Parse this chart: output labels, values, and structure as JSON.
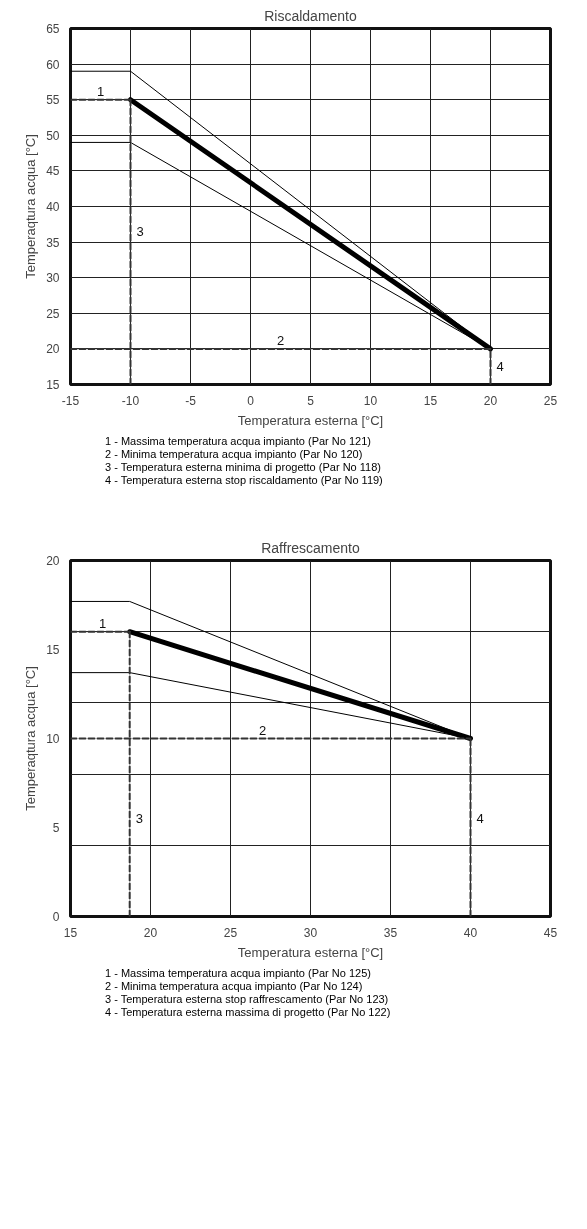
{
  "chart_data": [
    {
      "type": "line",
      "title": "Riscaldamento",
      "xlabel": "Temperatura esterna [°C]",
      "ylabel": "Temperaqtura acqua [°C]",
      "xlim": [
        -15,
        25
      ],
      "xticks": [
        -15,
        -10,
        -5,
        0,
        5,
        10,
        15,
        20,
        25
      ],
      "ylim": [
        15,
        65
      ],
      "yticks": [
        15,
        20,
        25,
        30,
        35,
        40,
        45,
        50,
        55,
        60,
        65
      ],
      "grid": true,
      "marker": "none",
      "series": [
        {
          "color": "#000000",
          "x": [
            -10,
            20
          ],
          "values": [
            55,
            20
          ]
        },
        {
          "color": "#000000",
          "x": [
            -15,
            -10,
            20
          ],
          "values": [
            59,
            59,
            20
          ]
        },
        {
          "color": "#000000",
          "x": [
            -15,
            -10,
            20
          ],
          "values": [
            49,
            49,
            20
          ]
        },
        {
          "color": "#333333",
          "line_style": "dashed",
          "x": [
            -15,
            -10
          ],
          "values": [
            55,
            55
          ]
        },
        {
          "color": "#333333",
          "line_style": "dashed",
          "x": [
            -10,
            -10
          ],
          "values": [
            15,
            55
          ]
        },
        {
          "color": "#333333",
          "line_style": "dashed",
          "x": [
            -15,
            20
          ],
          "values": [
            20,
            20
          ]
        },
        {
          "color": "#333333",
          "line_style": "dashed",
          "x": [
            20,
            20
          ],
          "values": [
            15,
            20
          ]
        }
      ],
      "annotations": [
        {
          "text": "1",
          "x": -12.5,
          "y": 55
        },
        {
          "text": "2",
          "x": 2.5,
          "y": 20
        },
        {
          "text": "3",
          "x": -10,
          "y": 36.5
        },
        {
          "text": "4",
          "x": 20,
          "y": 17.5
        },
        "1 - Massima temperatura acqua impianto (Par No 121)",
        "2 - Minima temperatura acqua impianto (Par No 120)",
        "3 - Temperatura esterna minima di progetto (Par No 118)",
        "4 - Temperatura esterna stop riscaldamento (Par No 119)"
      ]
    },
    {
      "type": "line",
      "title": "Raffrescamento",
      "xlabel": "Temperatura esterna [°C]",
      "ylabel": "Temperaqtura acqua [°C]",
      "xlim": [
        15,
        45
      ],
      "xticks": [
        15,
        20,
        25,
        30,
        35,
        40,
        45
      ],
      "ylim": [
        0,
        20
      ],
      "yticks": [
        0,
        {
          "value": 4,
          "label": null
        },
        5,
        {
          "value": 8,
          "label": null
        },
        10,
        {
          "value": 12,
          "label": null
        },
        15,
        {
          "value": 16,
          "label": null
        },
        20
      ],
      "grid": true,
      "marker": "none",
      "series": [
        {
          "color": "#000000",
          "x": [
            18.7,
            40
          ],
          "values": [
            16,
            10
          ]
        },
        {
          "color": "#000000",
          "x": [
            15,
            18.7,
            40
          ],
          "values": [
            17.7,
            17.7,
            10
          ]
        },
        {
          "color": "#000000",
          "x": [
            15,
            18.7,
            40
          ],
          "values": [
            13.7,
            13.7,
            10
          ]
        },
        {
          "color": "#333333",
          "line_style": "dashed",
          "x": [
            15,
            18.7
          ],
          "values": [
            16,
            16
          ]
        },
        {
          "color": "#333333",
          "line_style": "dashed",
          "x": [
            18.7,
            18.7
          ],
          "values": [
            0,
            16
          ]
        },
        {
          "color": "#333333",
          "line_style": "dashed",
          "x": [
            15,
            40
          ],
          "values": [
            10,
            10
          ]
        },
        {
          "color": "#333333",
          "line_style": "dashed",
          "x": [
            40,
            40
          ],
          "values": [
            0,
            10
          ]
        }
      ],
      "annotations": [
        {
          "text": "1",
          "x": 17,
          "y": 16
        },
        {
          "text": "2",
          "x": 27,
          "y": 10
        },
        {
          "text": "3",
          "x": 18.7,
          "y": 5.5
        },
        {
          "text": "4",
          "x": 40,
          "y": 5.5
        },
        "1 - Massima temperatura acqua impianto (Par No 125)",
        "2 - Minima temperatura acqua impianto (Par No 124)",
        "3 - Temperatura esterna stop raffrescamento (Par No 123)",
        "4 - Temperatura esterna massima di progetto (Par No 122)"
      ]
    }
  ]
}
